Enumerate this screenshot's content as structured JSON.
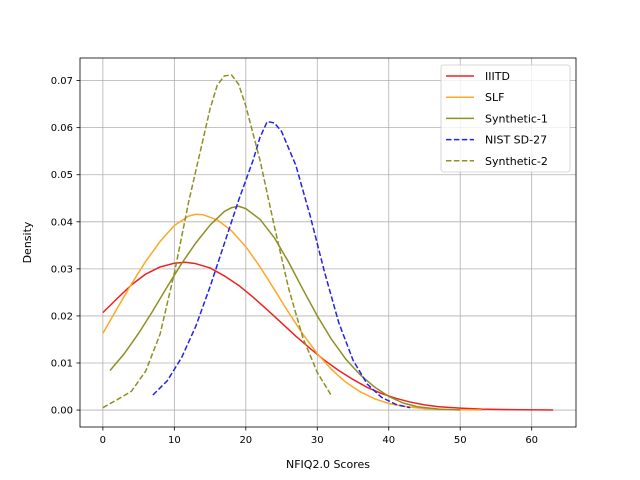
{
  "chart_data": {
    "type": "line",
    "title": "",
    "xlabel": "NFIQ2.0 Scores",
    "ylabel": "Density",
    "xlim": [
      -3.2,
      66.2
    ],
    "ylim": [
      -0.0036,
      0.0748
    ],
    "xticks": [
      0,
      10,
      20,
      30,
      40,
      50,
      60
    ],
    "yticks": [
      0.0,
      0.01,
      0.02,
      0.03,
      0.04,
      0.05,
      0.06,
      0.07
    ],
    "ytick_labels": [
      "0.00",
      "0.01",
      "0.02",
      "0.03",
      "0.04",
      "0.05",
      "0.06",
      "0.07"
    ],
    "grid": true,
    "legend_position": "top-right",
    "series": [
      {
        "name": "IIITD",
        "color": "#ee2222",
        "dash": "solid",
        "points": [
          [
            0,
            0.0207
          ],
          [
            2,
            0.0237
          ],
          [
            4,
            0.0266
          ],
          [
            6,
            0.0289
          ],
          [
            8,
            0.0304
          ],
          [
            10,
            0.0312
          ],
          [
            11.5,
            0.0314
          ],
          [
            13,
            0.0311
          ],
          [
            15,
            0.0302
          ],
          [
            17,
            0.0285
          ],
          [
            19,
            0.0265
          ],
          [
            21,
            0.024
          ],
          [
            23,
            0.0213
          ],
          [
            25,
            0.0185
          ],
          [
            27,
            0.0157
          ],
          [
            29,
            0.0131
          ],
          [
            31,
            0.0106
          ],
          [
            33,
            0.0084
          ],
          [
            35,
            0.0065
          ],
          [
            37,
            0.0048
          ],
          [
            39,
            0.0035
          ],
          [
            41,
            0.0025
          ],
          [
            43,
            0.0017
          ],
          [
            45,
            0.0011
          ],
          [
            47,
            0.0007
          ],
          [
            50,
            0.0004
          ],
          [
            53,
            0.0002
          ],
          [
            57,
            0.0001
          ],
          [
            63,
            0.0
          ]
        ]
      },
      {
        "name": "SLF",
        "color": "#ffa726",
        "dash": "solid",
        "points": [
          [
            0,
            0.0163
          ],
          [
            2,
            0.0216
          ],
          [
            4,
            0.0268
          ],
          [
            6,
            0.0316
          ],
          [
            8,
            0.0358
          ],
          [
            10,
            0.0392
          ],
          [
            12,
            0.0412
          ],
          [
            13,
            0.0416
          ],
          [
            14,
            0.0415
          ],
          [
            16,
            0.0404
          ],
          [
            18,
            0.0381
          ],
          [
            20,
            0.0347
          ],
          [
            22,
            0.0304
          ],
          [
            24,
            0.0256
          ],
          [
            26,
            0.0207
          ],
          [
            28,
            0.0161
          ],
          [
            30,
            0.012
          ],
          [
            32,
            0.0086
          ],
          [
            34,
            0.0059
          ],
          [
            36,
            0.0039
          ],
          [
            38,
            0.0024
          ],
          [
            40,
            0.0014
          ],
          [
            42,
            0.0008
          ],
          [
            45,
            0.0003
          ],
          [
            48,
            0.0001
          ],
          [
            53,
            0.0
          ]
        ]
      },
      {
        "name": "Synthetic-1",
        "color": "#8f8f24",
        "dash": "solid",
        "points": [
          [
            1,
            0.0084
          ],
          [
            3,
            0.012
          ],
          [
            5,
            0.0163
          ],
          [
            7,
            0.0211
          ],
          [
            9,
            0.0262
          ],
          [
            11,
            0.0311
          ],
          [
            13,
            0.0355
          ],
          [
            15,
            0.0393
          ],
          [
            17,
            0.0422
          ],
          [
            18,
            0.043
          ],
          [
            19,
            0.0433
          ],
          [
            20,
            0.0428
          ],
          [
            22,
            0.0405
          ],
          [
            24,
            0.0366
          ],
          [
            26,
            0.0314
          ],
          [
            28,
            0.0256
          ],
          [
            30,
            0.02
          ],
          [
            32,
            0.015
          ],
          [
            34,
            0.0108
          ],
          [
            36,
            0.0075
          ],
          [
            38,
            0.0049
          ],
          [
            40,
            0.0029
          ],
          [
            42,
            0.0015
          ],
          [
            44,
            0.0007
          ],
          [
            47,
            0.0002
          ],
          [
            50,
            0.0
          ]
        ]
      },
      {
        "name": "NIST SD-27",
        "color": "#2222ee",
        "dash": "dashed",
        "points": [
          [
            7,
            0.0032
          ],
          [
            9,
            0.0062
          ],
          [
            11,
            0.0111
          ],
          [
            13,
            0.0178
          ],
          [
            15,
            0.0262
          ],
          [
            17,
            0.0354
          ],
          [
            19,
            0.0446
          ],
          [
            21,
            0.053
          ],
          [
            22,
            0.058
          ],
          [
            23,
            0.0613
          ],
          [
            24,
            0.061
          ],
          [
            25,
            0.0592
          ],
          [
            27,
            0.052
          ],
          [
            29,
            0.0413
          ],
          [
            31,
            0.0294
          ],
          [
            33,
            0.0186
          ],
          [
            35,
            0.0106
          ],
          [
            37,
            0.0055
          ],
          [
            39,
            0.0027
          ],
          [
            41,
            0.0012
          ],
          [
            43,
            0.0005
          ]
        ]
      },
      {
        "name": "Synthetic-2",
        "color": "#8f8f24",
        "dash": "dashed",
        "points": [
          [
            0,
            0.0005
          ],
          [
            2,
            0.0022
          ],
          [
            4,
            0.004
          ],
          [
            6,
            0.0083
          ],
          [
            8,
            0.0161
          ],
          [
            10,
            0.0291
          ],
          [
            12,
            0.0442
          ],
          [
            14,
            0.0574
          ],
          [
            15,
            0.064
          ],
          [
            16,
            0.069
          ],
          [
            17,
            0.071
          ],
          [
            18,
            0.0712
          ],
          [
            19,
            0.0692
          ],
          [
            20,
            0.0646
          ],
          [
            22,
            0.053
          ],
          [
            24,
            0.039
          ],
          [
            26,
            0.0258
          ],
          [
            28,
            0.0153
          ],
          [
            30,
            0.008
          ],
          [
            32,
            0.003
          ]
        ]
      }
    ]
  }
}
